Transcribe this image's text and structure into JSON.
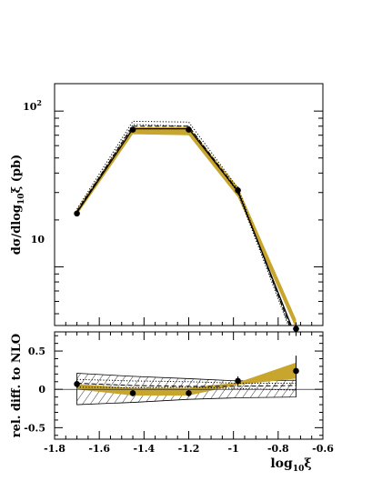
{
  "chart_data": [
    {
      "type": "line",
      "panel": "main",
      "ylabel": "dσ/dlog",
      "ylabel_sub": "10",
      "ylabel_tail": "ξ (pb)",
      "yscale": "log",
      "ylim": [
        4.2,
        150
      ],
      "xlim": [
        -1.8,
        -0.6
      ],
      "y_tick_labels": [
        {
          "value": 10,
          "label": "10"
        },
        {
          "value": 100,
          "label": "10",
          "sup": "2"
        }
      ],
      "x": [
        -1.7,
        -1.45,
        -1.2,
        -0.98,
        -0.72
      ],
      "data_points": {
        "values": [
          22,
          76,
          76,
          31,
          4.0
        ],
        "errors": [
          0.8,
          2.5,
          2.5,
          1.8,
          0.4
        ]
      },
      "series": [
        {
          "style": "solid",
          "values": [
            22.3,
            77,
            77,
            30.5,
            3.5
          ]
        },
        {
          "style": "dashed",
          "values": [
            22.8,
            80,
            80,
            30.8,
            3.3
          ]
        },
        {
          "style": "dotted",
          "values": [
            23.5,
            86,
            85,
            32,
            3.2
          ]
        },
        {
          "style": "dotted",
          "values": [
            22.5,
            82,
            80,
            30,
            3.1
          ]
        }
      ],
      "band": {
        "lower": [
          21.5,
          71,
          70,
          28,
          4.0
        ],
        "upper": [
          23.5,
          79,
          79,
          32.5,
          4.6
        ],
        "color": "#c8a62e"
      }
    },
    {
      "type": "line",
      "panel": "ratio",
      "ylabel": "rel. diff. to NLO",
      "xlabel": "log",
      "xlabel_sub": "10",
      "xlabel_tail": "ξ",
      "ylim": [
        -0.65,
        0.75
      ],
      "xlim": [
        -1.8,
        -0.6
      ],
      "y_ticks": [
        -0.5,
        0,
        0.5
      ],
      "y_tick_labels": [
        "-0.5",
        "0",
        "0.5"
      ],
      "x_ticks": [
        -1.8,
        -1.6,
        -1.4,
        -1.2,
        -1.0,
        -0.8,
        -0.6
      ],
      "x_tick_labels": [
        "-1.8",
        "-1.6",
        "-1.4",
        "-1.2",
        "-1",
        "-0.8",
        "-0.6"
      ],
      "x": [
        -1.7,
        -1.45,
        -1.2,
        -0.98,
        -0.72
      ],
      "data_points": {
        "values": [
          0.07,
          -0.05,
          -0.05,
          0.11,
          0.24
        ],
        "errors": [
          0.05,
          0.04,
          0.04,
          0.06,
          0.2
        ]
      },
      "band": {
        "lower": [
          0.0,
          -0.08,
          -0.08,
          0.06,
          0.14
        ],
        "upper": [
          0.07,
          0.02,
          0.02,
          0.09,
          0.35
        ],
        "color": "#c8a62e"
      },
      "hatched_band": {
        "lower": [
          -0.2,
          -0.17,
          -0.13,
          -0.11,
          -0.1
        ],
        "upper": [
          0.21,
          0.17,
          0.14,
          0.11,
          0.12
        ]
      },
      "series": [
        {
          "style": "dashed",
          "values": [
            0.08,
            0.05,
            0.04,
            0.04,
            0.05
          ]
        },
        {
          "style": "dotted",
          "values": [
            0.13,
            0.11,
            0.1,
            0.08,
            0.08
          ]
        },
        {
          "style": "dotted",
          "values": [
            0.03,
            0.02,
            0.03,
            0.01,
            -0.01
          ]
        }
      ]
    }
  ]
}
